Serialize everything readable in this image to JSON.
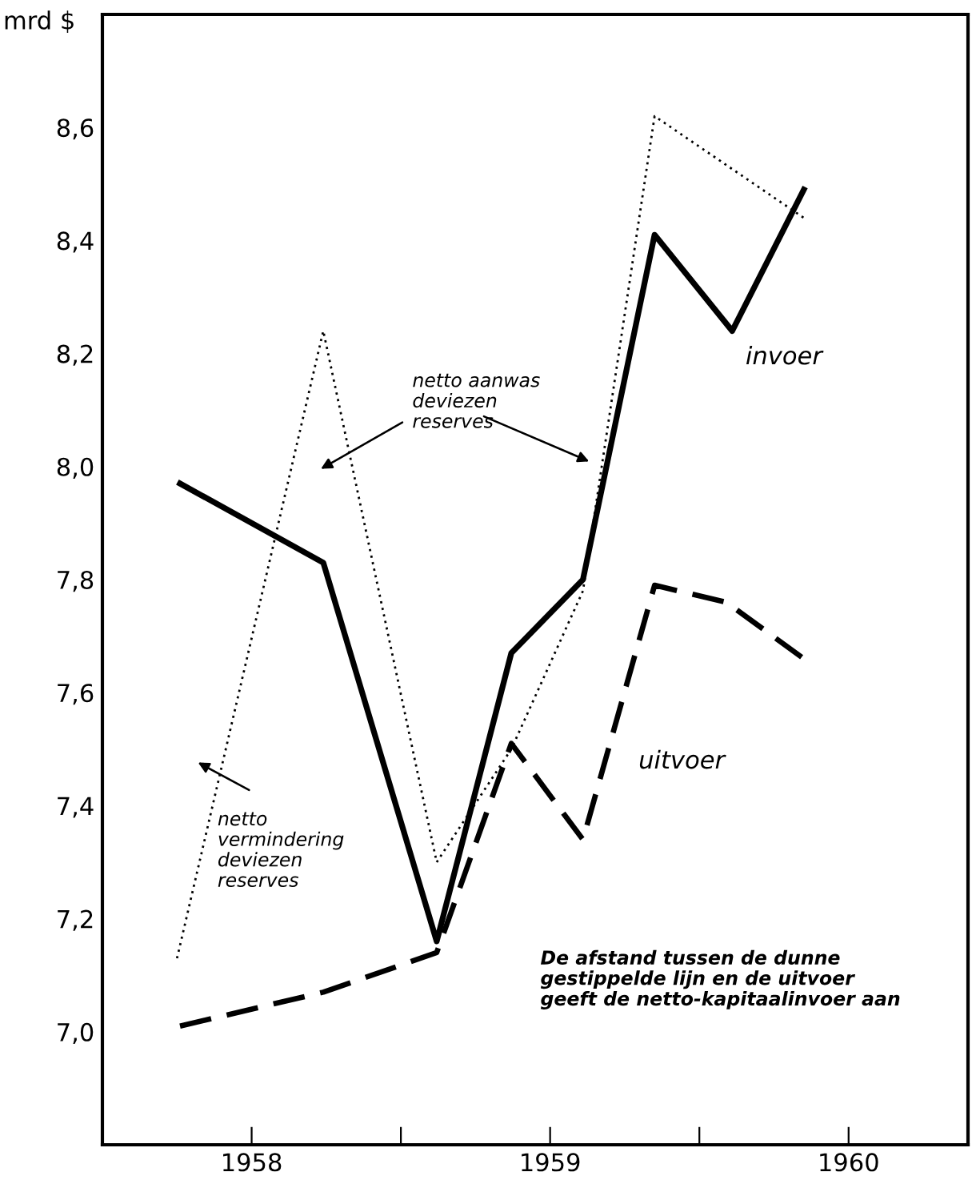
{
  "chart_data": {
    "type": "line",
    "ylabel": "mrd $",
    "xlim": [
      1957.5,
      1960.4
    ],
    "ylim": [
      6.8,
      8.8
    ],
    "xticks": [
      {
        "value": 1958,
        "label": "1958"
      },
      {
        "value": 1958.5,
        "label": null
      },
      {
        "value": 1959,
        "label": "1959"
      },
      {
        "value": 1959.5,
        "label": null
      },
      {
        "value": 1960,
        "label": "1960"
      }
    ],
    "yticks": [
      {
        "value": 7.0,
        "label": "7,0"
      },
      {
        "value": 7.2,
        "label": "7,2"
      },
      {
        "value": 7.4,
        "label": "7,4"
      },
      {
        "value": 7.6,
        "label": "7,6"
      },
      {
        "value": 7.8,
        "label": "7,8"
      },
      {
        "value": 8.0,
        "label": "8,0"
      },
      {
        "value": 8.2,
        "label": "8,2"
      },
      {
        "value": 8.4,
        "label": "8,4"
      },
      {
        "value": 8.6,
        "label": "8,6"
      }
    ],
    "grid": false,
    "legend": false,
    "marker": "none",
    "series": [
      {
        "name": "invoer",
        "color": "#000000",
        "line_style": "solid",
        "x": [
          1957.76,
          1958.24,
          1958.62,
          1958.87,
          1959.11,
          1959.35,
          1959.61,
          1959.85
        ],
        "values": [
          7.97,
          7.83,
          7.16,
          7.67,
          7.8,
          8.41,
          8.24,
          8.49
        ]
      },
      {
        "name": "uitvoer",
        "color": "#000000",
        "line_style": "dashed",
        "x": [
          1957.76,
          1958.24,
          1958.62,
          1958.87,
          1959.11,
          1959.35,
          1959.59,
          1959.85
        ],
        "values": [
          7.01,
          7.07,
          7.14,
          7.51,
          7.34,
          7.79,
          7.76,
          7.66
        ]
      },
      {
        "color": "#000000",
        "line_style": "dotted",
        "x": [
          1957.75,
          1958.24,
          1958.62,
          1958.87,
          1959.11,
          1959.35,
          1959.85
        ],
        "values": [
          7.13,
          8.24,
          7.3,
          7.5,
          7.78,
          8.62,
          8.44
        ]
      }
    ],
    "annotations": [
      "netto aanwas\ndeviezen\nreserves",
      "netto\nvermindering\ndeviezen\nreserves",
      "De afstand tussen de dunne\ngestippelde lijn en de uitvoer\ngeeft de netto-kapitaalinvoer aan"
    ]
  }
}
